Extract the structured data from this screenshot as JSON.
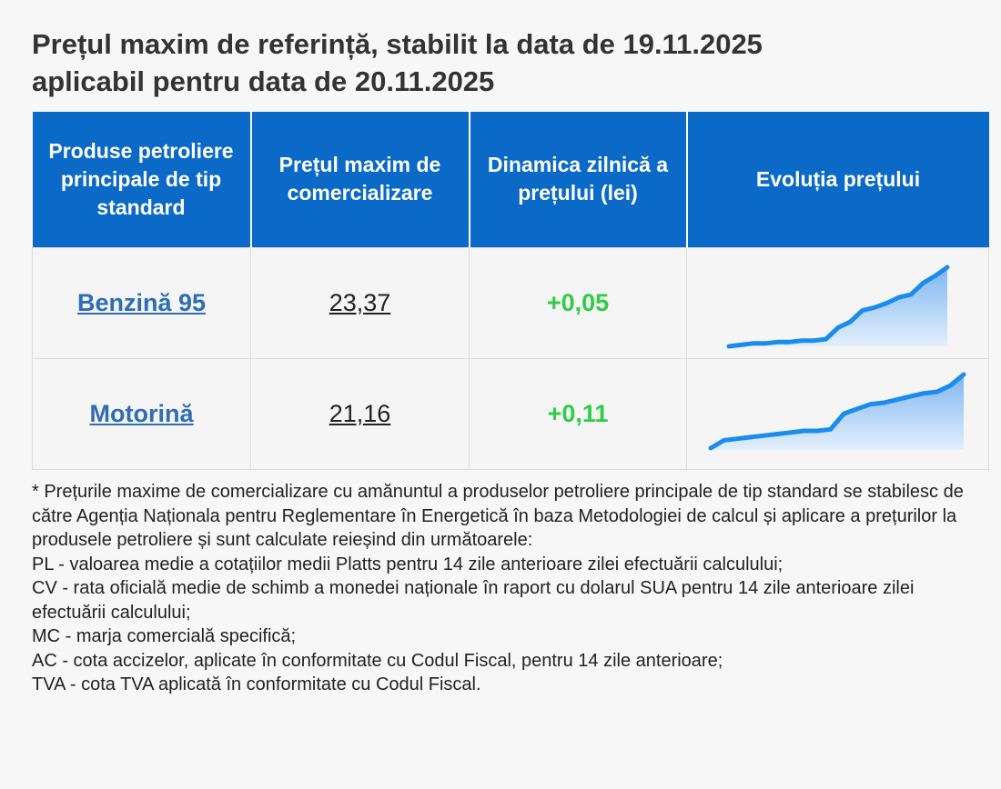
{
  "title": [
    "Prețul maxim de referință, stabilit la data de 19.11.2025",
    "aplicabil pentru data de 20.11.2025"
  ],
  "table": {
    "headers": [
      "Produse petroliere principale de tip standard",
      "Prețul maxim de comercializare",
      "Dinamica zilnică a prețului (lei)",
      "Evoluția prețului"
    ],
    "rows": [
      {
        "product": "Benzină 95",
        "price": "23,37",
        "change": "+0,05",
        "trend": [
          0,
          1,
          2,
          2,
          3,
          3,
          4,
          4,
          5,
          13,
          17,
          25,
          27,
          30,
          34,
          36,
          44,
          49,
          55
        ]
      },
      {
        "product": "Motorină",
        "price": "21,16",
        "change": "+0,11",
        "trend": [
          0,
          5,
          6,
          7,
          8,
          9,
          10,
          11,
          11,
          12,
          22,
          25,
          28,
          29,
          31,
          33,
          35,
          36,
          40,
          47
        ]
      }
    ]
  },
  "footnote": [
    "* Prețurile maxime de comercializare cu amănuntul a produselor petroliere principale de tip standard se stabilesc de către Agenția Naționala pentru Reglementare în Energetică în baza Metodologiei de calcul și aplicare a prețurilor la produsele petroliere și sunt calculate reieșind din următoarele:",
    "PL - valoarea medie a cotațiilor medii Platts pentru 14 zile anterioare zilei efectuării calculului;",
    "CV - rata oficială medie de schimb a monedei naționale în raport cu dolarul SUA pentru 14 zile anterioare zilei efectuării calculului;",
    "MC - marja comercială specifică;",
    "AC - cota accizelor, aplicate în conformitate cu Codul Fiscal, pentru 14 zile anterioare;",
    "TVA - cota TVA aplicată în conformitate cu Codul Fiscal."
  ]
}
